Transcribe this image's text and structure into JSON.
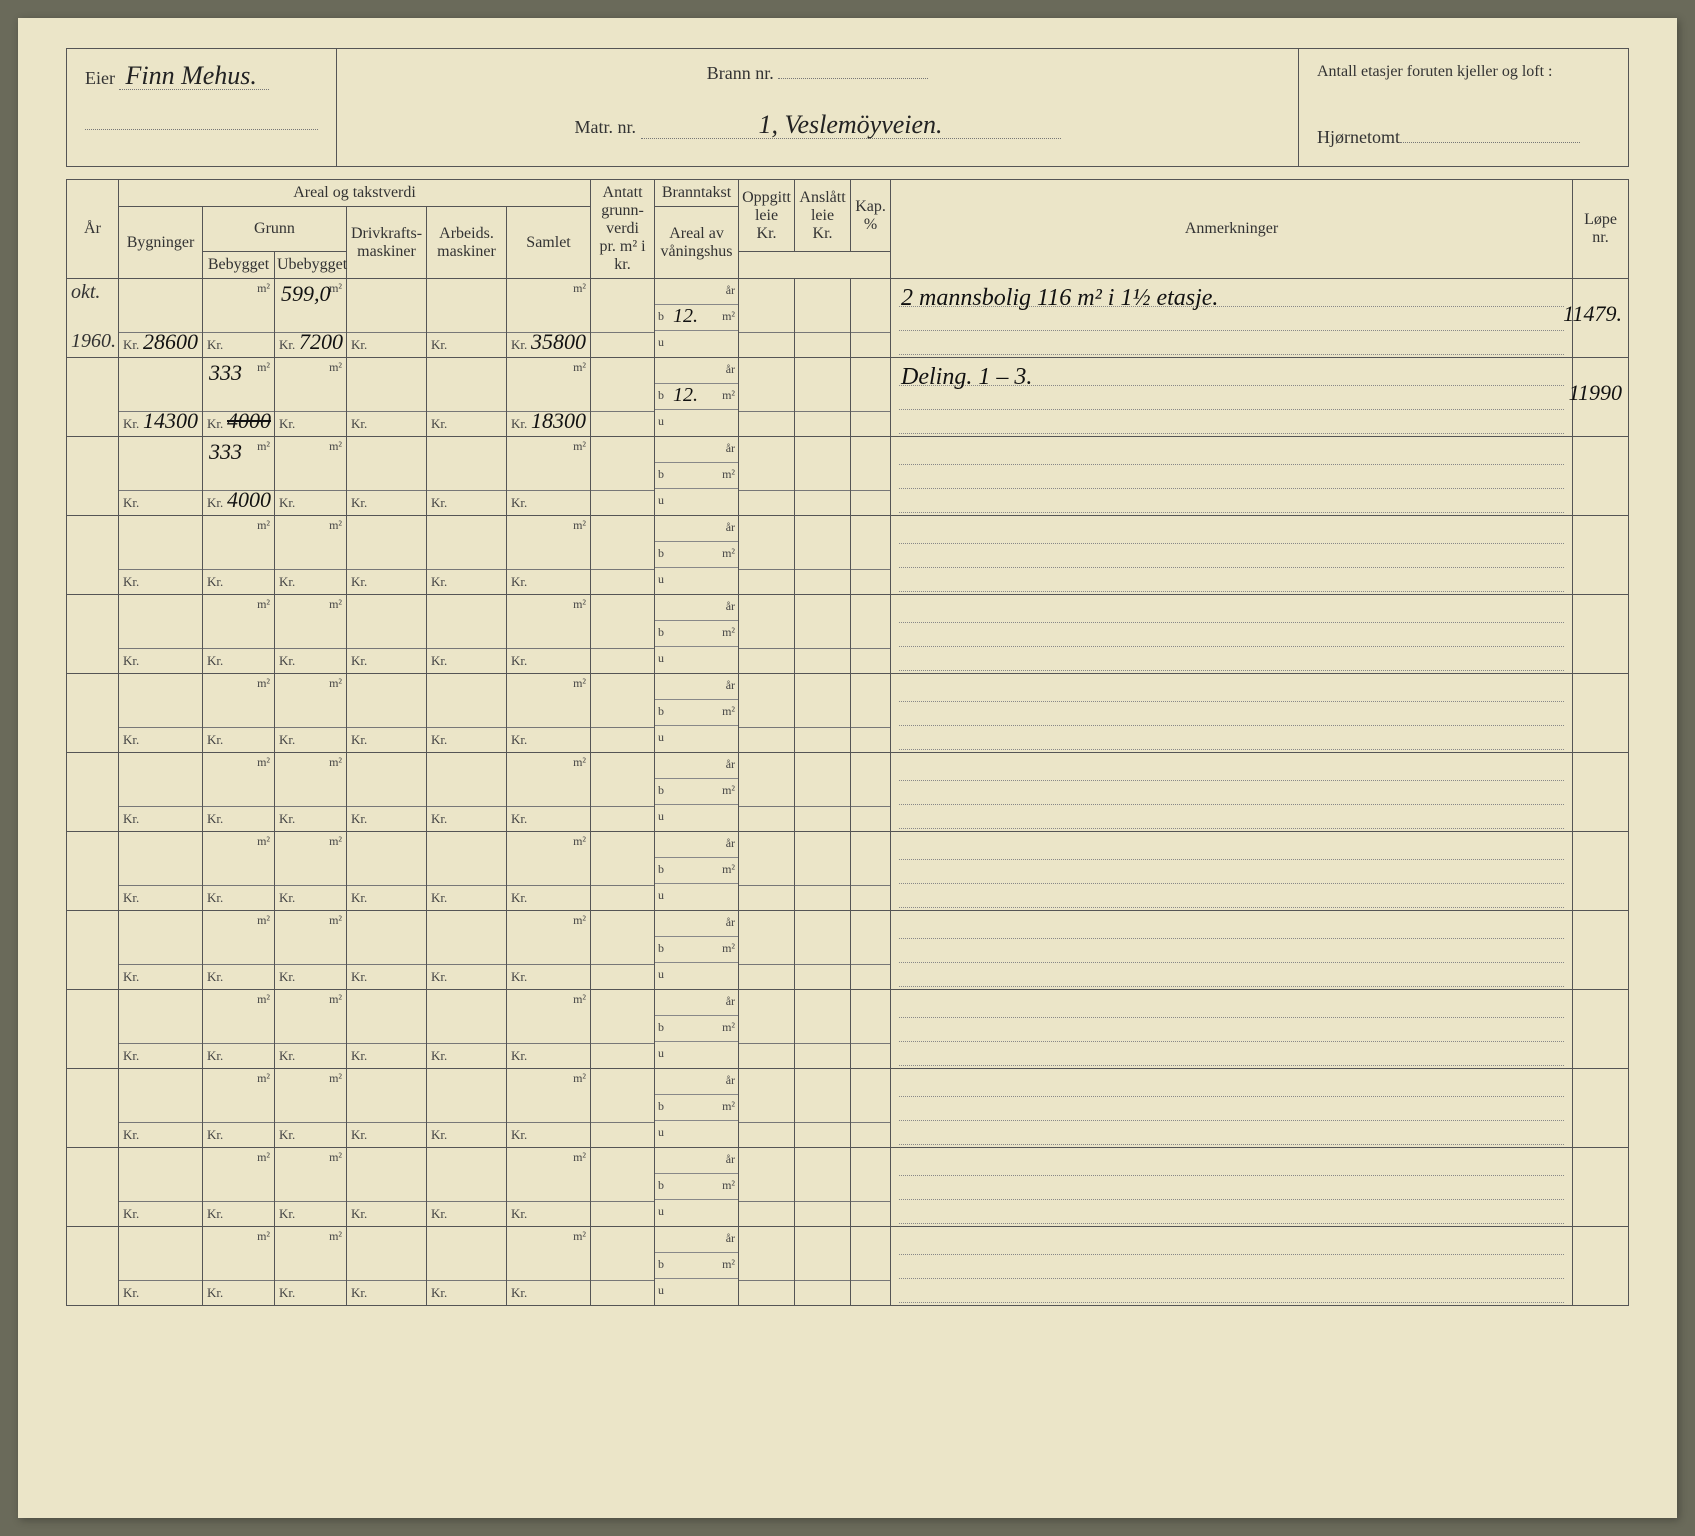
{
  "header": {
    "eier_label": "Eier",
    "eier_value": "Finn  Mehus.",
    "brann_label": "Brann nr.",
    "brann_value": "",
    "matr_label": "Matr. nr.",
    "matr_value": "1, Veslemöyveien.",
    "etasjer_label": "Antall etasjer foruten kjeller og loft :",
    "hjornetomt_label": "Hjørnetomt"
  },
  "columns": {
    "ar": "År",
    "areal_group": "Areal og takstverdi",
    "bygninger": "Bygninger",
    "grunn": "Grunn",
    "bebygget": "Bebygget",
    "ubebygget": "Ubebygget",
    "drivkraft": "Drivkrafts-\nmaskiner",
    "arbeids": "Arbeids.\nmaskiner",
    "samlet": "Samlet",
    "antatt": "Antatt\ngrunn-\nverdi\npr. m² i kr.",
    "branntakst": "Branntakst",
    "areal_av": "Areal av\nvåningshus",
    "oppgitt": "Oppgitt\nleie\nKr.",
    "anslatt": "Anslått\nleie\nKr.",
    "kap": "Kap.\n%",
    "anmerk": "Anmerkninger",
    "lope": "Løpe\nnr."
  },
  "units": {
    "m2": "m²",
    "kr": "Kr.",
    "ar": "år",
    "b": "b",
    "u": "u"
  },
  "rows": [
    {
      "ar_top": "okt.",
      "ar_bot": "1960.",
      "byg_kr": "28600",
      "beb_m2": "",
      "beb_kr": "",
      "ube_m2": "599,0",
      "ube_kr": "7200",
      "sam_kr": "35800",
      "b_val": "12.",
      "anm": "2 mannsbolig 116 m² i 1½ etasje.",
      "lop": "11479."
    },
    {
      "byg_kr": "14300",
      "beb_m2": "333",
      "beb_kr": "4000",
      "beb_kr_strike": true,
      "ube_m2": "",
      "ube_kr": "",
      "sam_kr": "18300",
      "b_val": "12.",
      "anm": "Deling.    1 – 3.",
      "lop": "11990"
    },
    {
      "beb_m2": "333",
      "beb_kr": "4000"
    },
    {},
    {},
    {},
    {},
    {},
    {},
    {},
    {},
    {},
    {}
  ]
}
